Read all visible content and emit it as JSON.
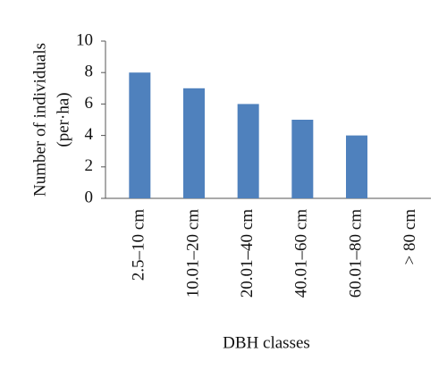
{
  "chart_data": {
    "type": "bar",
    "y_label": [
      "Number of individuals",
      "(per·ha)"
    ],
    "x_label": "DBH classes",
    "categories": [
      "2.5–10 cm",
      "10.01–20 cm",
      "20.01–40 cm",
      "40.01–60 cm",
      "60.01–80 cm",
      "> 80 cm"
    ],
    "values": [
      8,
      7,
      6,
      5,
      4,
      0
    ],
    "color": "#4f81bd",
    "ylim": [
      0,
      10
    ],
    "yticks": [
      0,
      2,
      4,
      6,
      8,
      10
    ],
    "grid": false
  }
}
